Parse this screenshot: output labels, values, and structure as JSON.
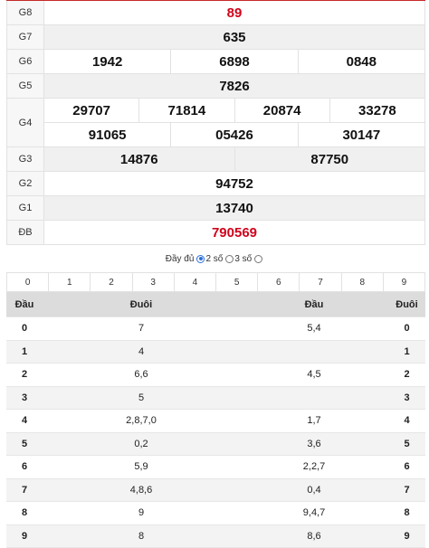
{
  "results": [
    {
      "label": "G8",
      "lines": [
        [
          "89"
        ]
      ],
      "red": true
    },
    {
      "label": "G7",
      "lines": [
        [
          "635"
        ]
      ]
    },
    {
      "label": "G6",
      "lines": [
        [
          "1942",
          "6898",
          "0848"
        ]
      ]
    },
    {
      "label": "G5",
      "lines": [
        [
          "7826"
        ]
      ]
    },
    {
      "label": "G4",
      "lines": [
        [
          "29707",
          "71814",
          "20874",
          "33278"
        ],
        [
          "91065",
          "05426",
          "30147"
        ]
      ]
    },
    {
      "label": "G3",
      "lines": [
        [
          "14876",
          "87750"
        ]
      ]
    },
    {
      "label": "G2",
      "lines": [
        [
          "94752"
        ]
      ]
    },
    {
      "label": "G1",
      "lines": [
        [
          "13740"
        ]
      ]
    },
    {
      "label": "ĐB",
      "lines": [
        [
          "790569"
        ]
      ],
      "red": true
    }
  ],
  "mode": {
    "full": "Đầy đủ",
    "two": "2 số",
    "three": "3 số"
  },
  "digits": [
    "0",
    "1",
    "2",
    "3",
    "4",
    "5",
    "6",
    "7",
    "8",
    "9"
  ],
  "table": {
    "headers": [
      "Đầu",
      "Đuôi",
      "Đầu",
      "Đuôi"
    ],
    "rows": [
      [
        "0",
        "7",
        "5,4",
        "0"
      ],
      [
        "1",
        "4",
        "",
        "1"
      ],
      [
        "2",
        "6,6",
        "4,5",
        "2"
      ],
      [
        "3",
        "5",
        "",
        "3"
      ],
      [
        "4",
        "2,8,7,0",
        "1,7",
        "4"
      ],
      [
        "5",
        "0,2",
        "3,6",
        "5"
      ],
      [
        "6",
        "5,9",
        "2,2,7",
        "6"
      ],
      [
        "7",
        "4,8,6",
        "0,4",
        "7"
      ],
      [
        "8",
        "9",
        "9,4,7",
        "8"
      ],
      [
        "9",
        "8",
        "8,6",
        "9"
      ]
    ]
  },
  "colors": {
    "accent_red": "#d0021b",
    "radio_blue": "#2a6fdb"
  }
}
